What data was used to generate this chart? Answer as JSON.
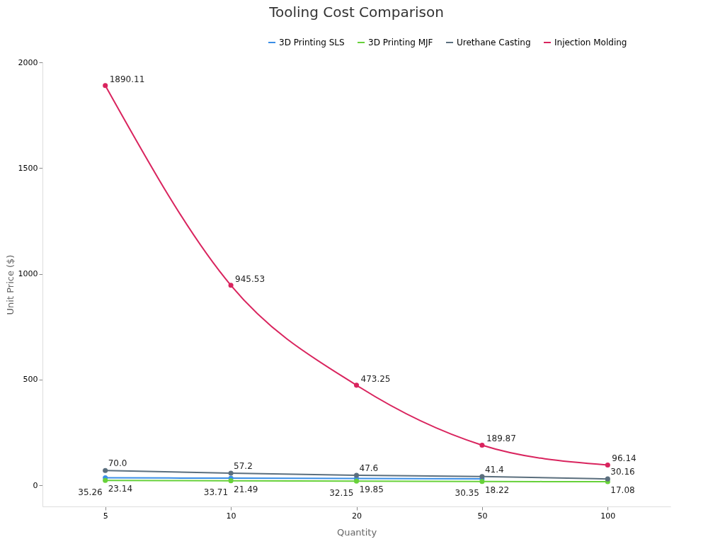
{
  "chart_data": {
    "type": "line",
    "title": "Tooling Cost Comparison",
    "xlabel": "Quantity",
    "ylabel": "Unit Price ($)",
    "categories": [
      "5",
      "10",
      "20",
      "50",
      "100"
    ],
    "ylim": [
      -100,
      2000
    ],
    "yticks": [
      0,
      500,
      1000,
      1500,
      2000
    ],
    "grid": false,
    "legend": "top",
    "marker": "circle",
    "data_labels": true,
    "series": [
      {
        "name": "3D Printing SLS",
        "color": "#3a8ee6",
        "values": [
          35.26,
          33.71,
          32.15,
          30.35,
          null
        ]
      },
      {
        "name": "3D Printing MJF",
        "color": "#67d13a",
        "values": [
          23.14,
          21.49,
          19.85,
          18.22,
          17.08
        ]
      },
      {
        "name": "Urethane Casting",
        "color": "#5b6f7e",
        "values": [
          70.0,
          57.2,
          47.6,
          41.4,
          30.16
        ],
        "value_labels": [
          "70.0",
          "57.2",
          "47.6",
          "41.4",
          "30.16"
        ]
      },
      {
        "name": "Injection Molding",
        "color": "#d9245e",
        "values": [
          1890.11,
          945.53,
          473.25,
          189.87,
          96.14
        ]
      }
    ]
  }
}
